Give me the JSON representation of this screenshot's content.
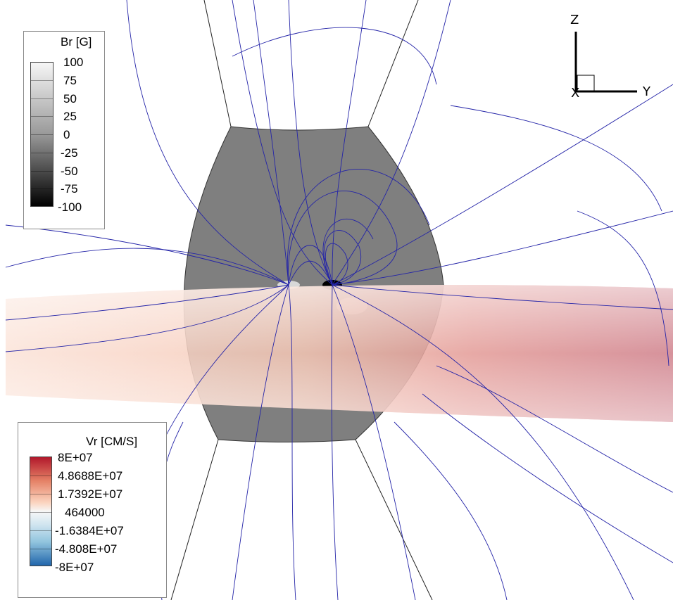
{
  "br_legend": {
    "title": "Br [G]",
    "ticks": [
      "100",
      "75",
      "50",
      "25",
      "0",
      "-25",
      "-50",
      "-75",
      "-100"
    ]
  },
  "vr_legend": {
    "title": "Vr [CM/S]",
    "ticks": [
      "8E+07",
      "4.8688E+07",
      "1.7392E+07",
      "464000",
      "-1.6384E+07",
      "-4.808E+07",
      "-8E+07"
    ]
  },
  "axes_triad": {
    "z_label": "Z",
    "x_label": "X",
    "y_label": "Y"
  },
  "colors": {
    "field_lines": "#2424a8",
    "surface_gray": "#7d7d7d",
    "vr_high": "#b2182b",
    "vr_low": "#2166ac"
  }
}
